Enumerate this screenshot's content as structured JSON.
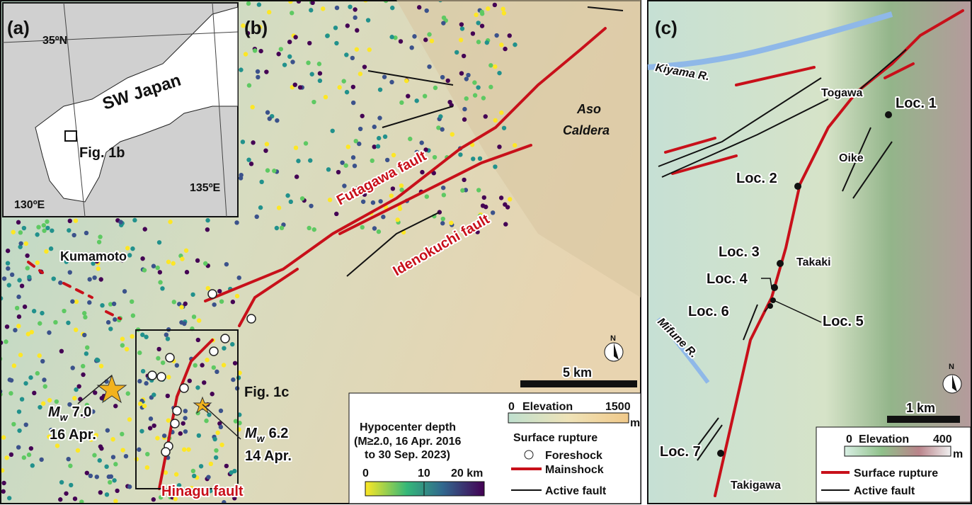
{
  "panel_a": {
    "label": "(a)",
    "lat": "35ºN",
    "region": "SW Japan",
    "box": "Fig. 1b",
    "lon_west": "130ºE",
    "lon_east": "135ºE"
  },
  "panel_b": {
    "label": "(b)",
    "futagawa": "Futagawa fault",
    "idenokuchi": "Idenokuchi fault",
    "aso_line1": "Aso",
    "aso_line2": "Caldera",
    "kumamoto": "Kumamoto",
    "box": "Fig. 1c",
    "hinagu": "Hinagu fault",
    "mainshock": {
      "symbol": "M",
      "subscript": "w",
      "magnitude": "7.0",
      "date": "16 Apr."
    },
    "foreshock": {
      "symbol": "M",
      "subscript": "w",
      "magnitude": "6.2",
      "date": "14 Apr."
    },
    "scale": "5 km",
    "north": "N",
    "legend": {
      "depth_title": "Hypocenter depth",
      "depth_sub1": "(M≥2.0, 16 Apr. 2016",
      "depth_sub2": "to 30 Sep. 2023)",
      "depth_ticks": [
        "0",
        "10",
        "20 km"
      ],
      "rupture_title": "Surface rupture",
      "foreshock": "Foreshock",
      "mainshock": "Mainshock",
      "active": "Active fault",
      "elev_min": "0",
      "elev_title": "Elevation",
      "elev_max": "1500",
      "elev_unit": "m"
    }
  },
  "panel_c": {
    "label": "(c)",
    "kiyama": "Kiyama R.",
    "togawa": "Togawa",
    "oike": "Oike",
    "takaki": "Takaki",
    "mifune": "Mifune R.",
    "takigawa": "Takigawa",
    "locs": [
      "Loc. 1",
      "Loc. 2",
      "Loc. 3",
      "Loc. 4",
      "Loc. 5",
      "Loc. 6",
      "Loc. 7"
    ],
    "scale": "1 km",
    "north": "N",
    "legend": {
      "elev_min": "0",
      "elev_title": "Elevation",
      "elev_max": "400",
      "elev_unit": "m",
      "rupture": "Surface rupture",
      "active": "Active fault"
    }
  }
}
